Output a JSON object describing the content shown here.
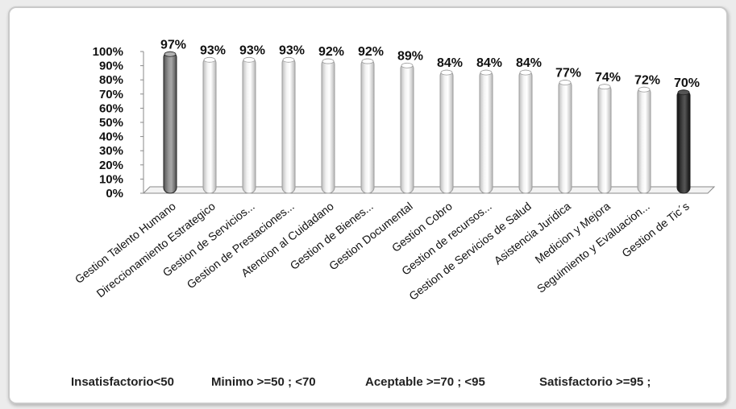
{
  "chart_data": {
    "type": "bar",
    "categories": [
      "Gestion Talento Humano",
      "Direccionamiento Estrategico",
      "Gestion de Servicios...",
      "Gestion de Prestaciones...",
      "Atencion al Cuidadano",
      "Gestion de Bienes...",
      "Gestion Documental",
      "Gestion Cobro",
      "Gestion de recursos...",
      "Gestion de Servicios de Salud",
      "Asistencia Juridica",
      "Medicion y Mejora",
      "Seguimiento y Evaluacion...",
      "Gestion de Tic´s"
    ],
    "values": [
      97,
      93,
      93,
      93,
      92,
      92,
      89,
      84,
      84,
      84,
      77,
      74,
      72,
      70
    ],
    "data_labels": [
      "97%",
      "93%",
      "93%",
      "93%",
      "92%",
      "92%",
      "89%",
      "84%",
      "84%",
      "84%",
      "77%",
      "74%",
      "72%",
      "70%"
    ],
    "bar_colors": [
      "#7a7a7a",
      "#e6e6e6",
      "#e6e6e6",
      "#e6e6e6",
      "#e6e6e6",
      "#e6e6e6",
      "#e6e6e6",
      "#e6e6e6",
      "#e6e6e6",
      "#e6e6e6",
      "#e6e6e6",
      "#e6e6e6",
      "#e6e6e6",
      "#2a2a2a"
    ],
    "y_ticks": [
      "0%",
      "10%",
      "20%",
      "30%",
      "40%",
      "50%",
      "60%",
      "70%",
      "80%",
      "90%",
      "100%"
    ],
    "ylim": [
      0,
      100
    ],
    "grid": false,
    "title": "",
    "xlabel": "",
    "ylabel": ""
  },
  "legend": {
    "insatisfactorio": "Insatisfactorio<50",
    "minimo": "Minimo >=50 ; <70",
    "aceptable": "Aceptable >=70 ; <95",
    "satisfactorio": "Satisfactorio >=95 ;"
  }
}
